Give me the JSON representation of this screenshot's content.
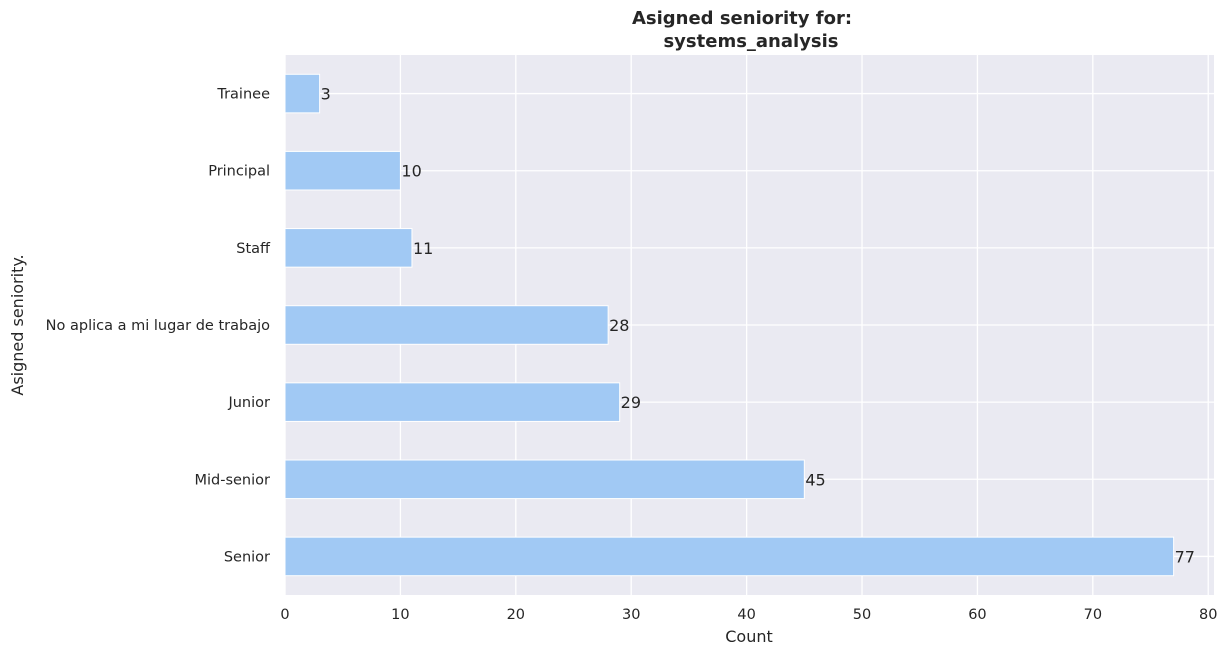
{
  "chart_data": {
    "type": "bar",
    "orientation": "horizontal",
    "title_lines": [
      "Asigned seniority for:",
      "systems_analysis"
    ],
    "xlabel": "Count",
    "ylabel": "Asigned seniority.",
    "categories": [
      "Trainee",
      "Principal",
      "Staff",
      "No aplica a mi lugar de trabajo",
      "Junior",
      "Mid-senior",
      "Senior"
    ],
    "values": [
      3,
      10,
      11,
      28,
      29,
      45,
      77
    ],
    "data_labels": [
      "3",
      "10",
      "11",
      "28",
      "29",
      "45",
      "77"
    ],
    "xlim": [
      0,
      80.5
    ],
    "xticks": [
      0,
      10,
      20,
      30,
      40,
      50,
      60,
      70,
      80
    ],
    "xtick_labels": [
      "0",
      "10",
      "20",
      "30",
      "40",
      "50",
      "60",
      "70",
      "80"
    ],
    "grid": true,
    "colors": {
      "bar": "#a1c9f4",
      "background": "#eaeaf2",
      "grid": "#ffffff",
      "text": "#262626"
    }
  }
}
